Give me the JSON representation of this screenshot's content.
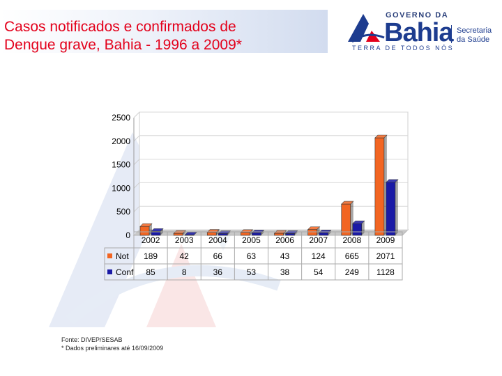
{
  "header": {
    "title_line1": "Casos notificados e confirmados de",
    "title_line2": "Dengue grave, Bahia - 1996 a 2009*"
  },
  "logo": {
    "top_text": "GOVERNO DA",
    "name": "Bahia",
    "secretaria_line1": "Secretaria",
    "secretaria_line2": "da Saúde",
    "tagline": "TERRA DE TODOS NÓS"
  },
  "colors": {
    "title": "#e3001b",
    "not": "#f26522",
    "conf": "#1a1aa6"
  },
  "chart_data": {
    "type": "bar",
    "title": "",
    "categories": [
      "2002",
      "2003",
      "2004",
      "2005",
      "2006",
      "2007",
      "2008",
      "2009"
    ],
    "series": [
      {
        "name": "Not",
        "values": [
          189,
          42,
          66,
          63,
          43,
          124,
          665,
          2071
        ]
      },
      {
        "name": "Conf",
        "values": [
          85,
          8,
          36,
          53,
          38,
          54,
          249,
          1128
        ]
      }
    ],
    "yticks": [
      "0",
      "500",
      "1000",
      "1500",
      "2000",
      "2500"
    ],
    "ylim": [
      0,
      2500
    ],
    "grid": true,
    "legend": "data-table"
  },
  "footer": {
    "source": "Fonte: DIVEP/SESAB",
    "note": "* Dados preliminares até 16/09/2009"
  }
}
